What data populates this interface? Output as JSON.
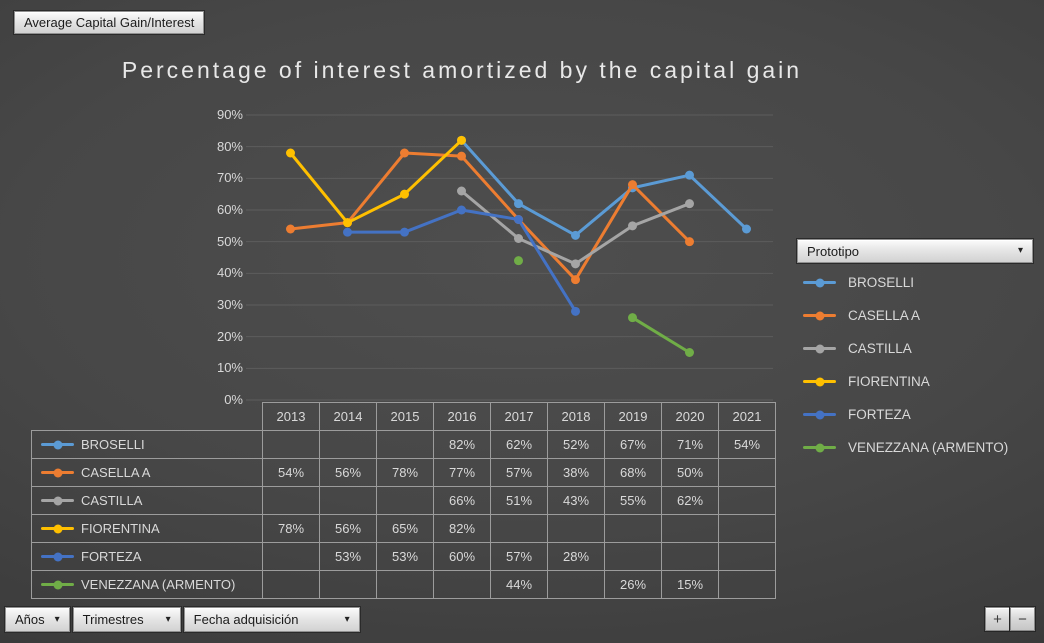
{
  "toolbar": {
    "field_button": "Average Capital Gain/Interest"
  },
  "chart_data": {
    "type": "line",
    "title": "Percentage of interest amortized by the capital gain",
    "categories": [
      "2013",
      "2014",
      "2015",
      "2016",
      "2017",
      "2018",
      "2019",
      "2020",
      "2021"
    ],
    "series": [
      {
        "name": "BROSELLI",
        "color": "#5B9BD5",
        "values": [
          null,
          null,
          null,
          82,
          62,
          52,
          67,
          71,
          54
        ]
      },
      {
        "name": "CASELLA A",
        "color": "#ED7D31",
        "values": [
          54,
          56,
          78,
          77,
          57,
          38,
          68,
          50,
          null
        ]
      },
      {
        "name": "CASTILLA",
        "color": "#A5A5A5",
        "values": [
          null,
          null,
          null,
          66,
          51,
          43,
          55,
          62,
          null
        ]
      },
      {
        "name": "FIORENTINA",
        "color": "#FFC000",
        "values": [
          78,
          56,
          65,
          82,
          null,
          null,
          null,
          null,
          null
        ]
      },
      {
        "name": "FORTEZA",
        "color": "#4472C4",
        "values": [
          null,
          53,
          53,
          60,
          57,
          28,
          null,
          null,
          null
        ]
      },
      {
        "name": "VENEZZANA (ARMENTO)",
        "color": "#70AD47",
        "values": [
          null,
          null,
          null,
          null,
          44,
          null,
          26,
          15,
          null
        ]
      }
    ],
    "unit": "%",
    "y_ticks": [
      "0%",
      "10%",
      "20%",
      "30%",
      "40%",
      "50%",
      "60%",
      "70%",
      "80%",
      "90%"
    ],
    "ylim": [
      0,
      90
    ],
    "grid": true,
    "legend_position": "right",
    "value_format": "percent"
  },
  "legend": {
    "field_label": "Prototipo",
    "dropdown_arrow": "▾"
  },
  "filters": [
    {
      "label": "Años",
      "arrow": "▾"
    },
    {
      "label": "Trimestres",
      "arrow": "▾"
    },
    {
      "label": "Fecha adquisición",
      "arrow": "▾"
    }
  ],
  "zoom_buttons": {
    "plus": "+",
    "minus": "−"
  },
  "colors": {
    "background": "#474747",
    "gridline": "#5d5d5d",
    "table_border": "#9c9c9c",
    "text": "#d9d9d9",
    "title": "#e8e8e8"
  }
}
